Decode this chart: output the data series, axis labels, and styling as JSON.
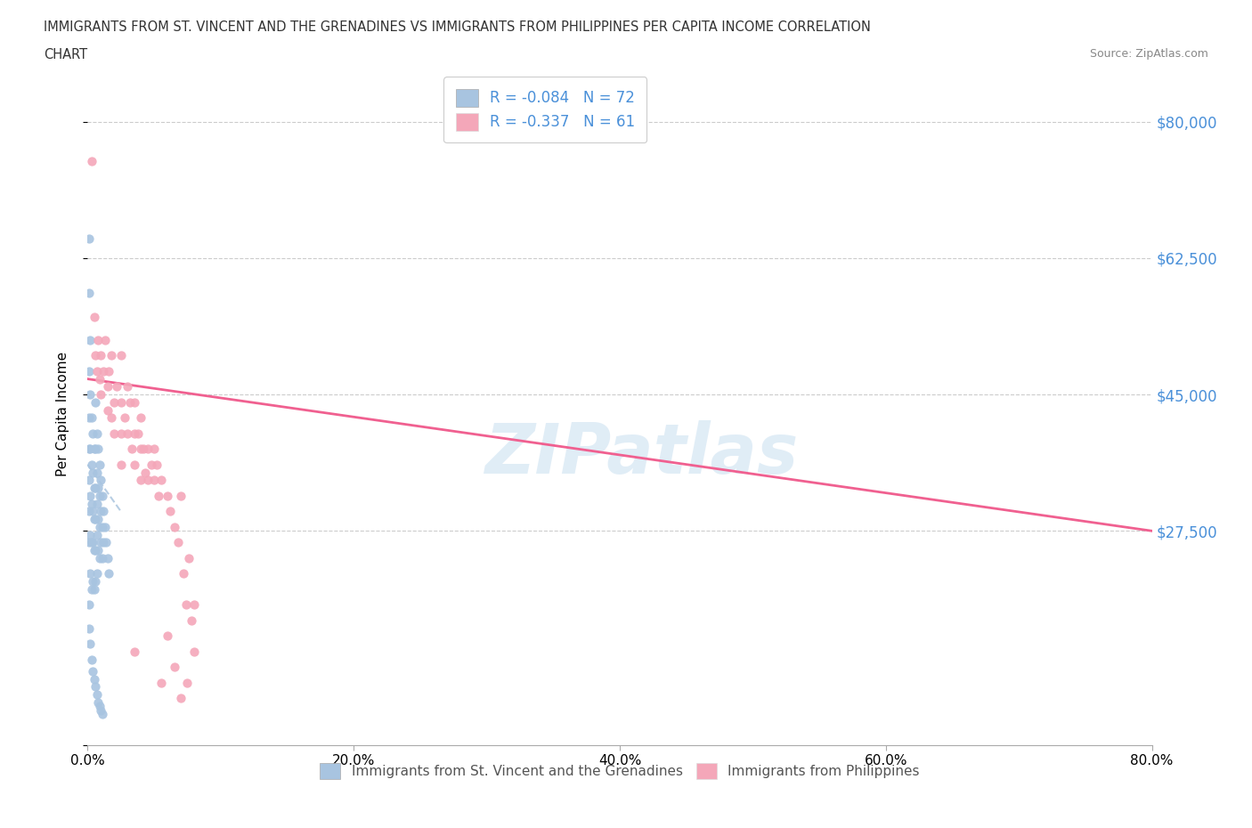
{
  "title_line1": "IMMIGRANTS FROM ST. VINCENT AND THE GRENADINES VS IMMIGRANTS FROM PHILIPPINES PER CAPITA INCOME CORRELATION",
  "title_line2": "CHART",
  "source": "Source: ZipAtlas.com",
  "ylabel": "Per Capita Income",
  "xlim": [
    0,
    0.8
  ],
  "ylim": [
    0,
    85000
  ],
  "yticks": [
    0,
    27500,
    45000,
    62500,
    80000
  ],
  "ytick_labels": [
    "",
    "$27,500",
    "$45,000",
    "$62,500",
    "$80,000"
  ],
  "xticks": [
    0.0,
    0.2,
    0.4,
    0.6,
    0.8
  ],
  "xtick_labels": [
    "0.0%",
    "20.0%",
    "40.0%",
    "60.0%",
    "80.0%"
  ],
  "legend_r1": "R = -0.084   N = 72",
  "legend_r2": "R = -0.337   N = 61",
  "color_vincent": "#a8c4e0",
  "color_philippines": "#f4a7b9",
  "trendline_vincent_color": "#b0c8e0",
  "trendline_philippines_color": "#f06090",
  "background_color": "#ffffff",
  "vincent_x": [
    0.001,
    0.001,
    0.001,
    0.001,
    0.001,
    0.001,
    0.001,
    0.001,
    0.002,
    0.002,
    0.002,
    0.002,
    0.002,
    0.002,
    0.003,
    0.003,
    0.003,
    0.003,
    0.003,
    0.004,
    0.004,
    0.004,
    0.004,
    0.004,
    0.005,
    0.005,
    0.005,
    0.005,
    0.005,
    0.006,
    0.006,
    0.006,
    0.006,
    0.006,
    0.006,
    0.007,
    0.007,
    0.007,
    0.007,
    0.007,
    0.008,
    0.008,
    0.008,
    0.008,
    0.009,
    0.009,
    0.009,
    0.009,
    0.01,
    0.01,
    0.01,
    0.011,
    0.011,
    0.011,
    0.012,
    0.012,
    0.013,
    0.014,
    0.015,
    0.016,
    0.001,
    0.001,
    0.002,
    0.003,
    0.004,
    0.005,
    0.006,
    0.007,
    0.008,
    0.009,
    0.01,
    0.011
  ],
  "vincent_y": [
    65000,
    58000,
    48000,
    42000,
    38000,
    34000,
    30000,
    26000,
    52000,
    45000,
    38000,
    32000,
    27000,
    22000,
    42000,
    36000,
    31000,
    26000,
    20000,
    40000,
    35000,
    30000,
    26000,
    21000,
    38000,
    33000,
    29000,
    25000,
    20000,
    44000,
    38000,
    33000,
    29000,
    25000,
    21000,
    40000,
    35000,
    31000,
    27000,
    22000,
    38000,
    33000,
    29000,
    25000,
    36000,
    32000,
    28000,
    24000,
    34000,
    30000,
    26000,
    32000,
    28000,
    24000,
    30000,
    26000,
    28000,
    26000,
    24000,
    22000,
    18000,
    15000,
    13000,
    11000,
    9500,
    8500,
    7500,
    6500,
    5500,
    5000,
    4500,
    4000
  ],
  "philippines_x": [
    0.003,
    0.005,
    0.006,
    0.007,
    0.008,
    0.009,
    0.01,
    0.01,
    0.012,
    0.013,
    0.015,
    0.015,
    0.016,
    0.018,
    0.018,
    0.02,
    0.02,
    0.022,
    0.025,
    0.025,
    0.025,
    0.025,
    0.028,
    0.03,
    0.03,
    0.032,
    0.033,
    0.035,
    0.035,
    0.035,
    0.038,
    0.04,
    0.04,
    0.04,
    0.042,
    0.043,
    0.045,
    0.045,
    0.048,
    0.05,
    0.05,
    0.052,
    0.053,
    0.055,
    0.06,
    0.062,
    0.065,
    0.068,
    0.07,
    0.072,
    0.074,
    0.076,
    0.078,
    0.08,
    0.035,
    0.055,
    0.06,
    0.065,
    0.07,
    0.075,
    0.08
  ],
  "philippines_y": [
    75000,
    55000,
    50000,
    48000,
    52000,
    47000,
    50000,
    45000,
    48000,
    52000,
    46000,
    43000,
    48000,
    42000,
    50000,
    44000,
    40000,
    46000,
    50000,
    44000,
    40000,
    36000,
    42000,
    46000,
    40000,
    44000,
    38000,
    44000,
    40000,
    36000,
    40000,
    42000,
    38000,
    34000,
    38000,
    35000,
    38000,
    34000,
    36000,
    38000,
    34000,
    36000,
    32000,
    34000,
    32000,
    30000,
    28000,
    26000,
    32000,
    22000,
    18000,
    24000,
    16000,
    18000,
    12000,
    8000,
    14000,
    10000,
    6000,
    8000,
    12000
  ],
  "vincent_trend_x": [
    0.0,
    0.025
  ],
  "vincent_trend_y": [
    36000,
    30000
  ],
  "philippines_trend_x": [
    0.0,
    0.8
  ],
  "philippines_trend_y": [
    47000,
    27500
  ]
}
